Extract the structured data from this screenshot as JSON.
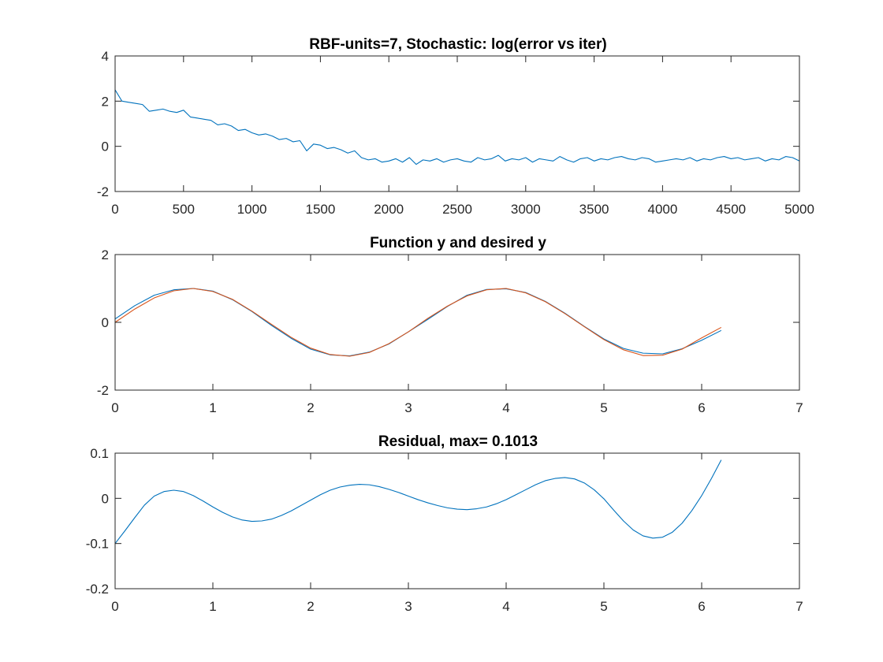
{
  "chart_data": [
    {
      "type": "line",
      "title": "RBF-units=7, Stochastic: log(error vs iter)",
      "xlabel": "",
      "ylabel": "",
      "xlim": [
        0,
        5000
      ],
      "ylim": [
        -2,
        4
      ],
      "xticks": [
        0,
        500,
        1000,
        1500,
        2000,
        2500,
        3000,
        3500,
        4000,
        4500,
        5000
      ],
      "yticks": [
        -2,
        0,
        2,
        4
      ],
      "grid": false,
      "series": [
        {
          "color": "#0072BD",
          "x": [
            0,
            50,
            100,
            150,
            200,
            250,
            300,
            350,
            400,
            450,
            500,
            550,
            600,
            650,
            700,
            750,
            800,
            850,
            900,
            950,
            1000,
            1050,
            1100,
            1150,
            1200,
            1250,
            1300,
            1350,
            1400,
            1450,
            1500,
            1550,
            1600,
            1650,
            1700,
            1750,
            1800,
            1850,
            1900,
            1950,
            2000,
            2050,
            2100,
            2150,
            2200,
            2250,
            2300,
            2350,
            2400,
            2450,
            2500,
            2550,
            2600,
            2650,
            2700,
            2750,
            2800,
            2850,
            2900,
            2950,
            3000,
            3050,
            3100,
            3150,
            3200,
            3250,
            3300,
            3350,
            3400,
            3450,
            3500,
            3550,
            3600,
            3650,
            3700,
            3750,
            3800,
            3850,
            3900,
            3950,
            4000,
            4050,
            4100,
            4150,
            4200,
            4250,
            4300,
            4350,
            4400,
            4450,
            4500,
            4550,
            4600,
            4650,
            4700,
            4750,
            4800,
            4850,
            4900,
            4950,
            5000
          ],
          "y": [
            2.5,
            2.0,
            1.95,
            1.9,
            1.85,
            1.55,
            1.6,
            1.65,
            1.55,
            1.5,
            1.6,
            1.3,
            1.25,
            1.2,
            1.15,
            0.95,
            1.0,
            0.9,
            0.7,
            0.75,
            0.6,
            0.5,
            0.55,
            0.45,
            0.3,
            0.35,
            0.2,
            0.25,
            -0.2,
            0.1,
            0.05,
            -0.1,
            -0.05,
            -0.15,
            -0.3,
            -0.2,
            -0.5,
            -0.6,
            -0.55,
            -0.7,
            -0.65,
            -0.55,
            -0.7,
            -0.5,
            -0.8,
            -0.6,
            -0.65,
            -0.55,
            -0.7,
            -0.6,
            -0.55,
            -0.65,
            -0.7,
            -0.5,
            -0.6,
            -0.55,
            -0.4,
            -0.65,
            -0.55,
            -0.6,
            -0.5,
            -0.7,
            -0.55,
            -0.6,
            -0.65,
            -0.45,
            -0.6,
            -0.7,
            -0.55,
            -0.5,
            -0.65,
            -0.55,
            -0.6,
            -0.5,
            -0.45,
            -0.55,
            -0.6,
            -0.5,
            -0.55,
            -0.7,
            -0.65,
            -0.6,
            -0.55,
            -0.6,
            -0.5,
            -0.65,
            -0.55,
            -0.6,
            -0.5,
            -0.45,
            -0.55,
            -0.5,
            -0.6,
            -0.55,
            -0.5,
            -0.65,
            -0.55,
            -0.6,
            -0.45,
            -0.5,
            -0.65
          ]
        }
      ]
    },
    {
      "type": "line",
      "title": "Function y and desired y",
      "xlabel": "",
      "ylabel": "",
      "xlim": [
        0,
        7
      ],
      "ylim": [
        -2,
        2
      ],
      "xticks": [
        0,
        1,
        2,
        3,
        4,
        5,
        6,
        7
      ],
      "yticks": [
        -2,
        0,
        2
      ],
      "grid": false,
      "series": [
        {
          "color": "#0072BD",
          "x": [
            0,
            0.2,
            0.4,
            0.6,
            0.8,
            1.0,
            1.2,
            1.4,
            1.6,
            1.8,
            2.0,
            2.2,
            2.4,
            2.6,
            2.8,
            3.0,
            3.2,
            3.4,
            3.6,
            3.8,
            4.0,
            4.2,
            4.4,
            4.6,
            4.8,
            5.0,
            5.2,
            5.4,
            5.6,
            5.8,
            6.0,
            6.2
          ],
          "y": [
            0.1,
            0.49,
            0.8,
            0.96,
            1.0,
            0.92,
            0.67,
            0.32,
            -0.09,
            -0.47,
            -0.79,
            -0.96,
            -0.99,
            -0.88,
            -0.64,
            -0.28,
            0.09,
            0.47,
            0.8,
            0.97,
            0.99,
            0.88,
            0.62,
            0.27,
            -0.12,
            -0.49,
            -0.77,
            -0.91,
            -0.93,
            -0.78,
            -0.53,
            -0.24
          ]
        },
        {
          "color": "#D95319",
          "x": [
            0,
            0.2,
            0.4,
            0.6,
            0.8,
            1.0,
            1.2,
            1.4,
            1.6,
            1.8,
            2.0,
            2.2,
            2.4,
            2.6,
            2.8,
            3.0,
            3.2,
            3.4,
            3.6,
            3.8,
            4.0,
            4.2,
            4.4,
            4.6,
            4.8,
            5.0,
            5.2,
            5.4,
            5.6,
            5.8,
            6.0,
            6.2
          ],
          "y": [
            0.0,
            0.39,
            0.72,
            0.93,
            1.0,
            0.91,
            0.68,
            0.33,
            -0.06,
            -0.44,
            -0.76,
            -0.95,
            -1.0,
            -0.89,
            -0.63,
            -0.28,
            0.12,
            0.48,
            0.78,
            0.96,
            1.0,
            0.87,
            0.61,
            0.26,
            -0.13,
            -0.51,
            -0.81,
            -0.98,
            -0.97,
            -0.79,
            -0.46,
            -0.15
          ]
        }
      ]
    },
    {
      "type": "line",
      "title": "Residual, max= 0.1013",
      "xlabel": "",
      "ylabel": "",
      "xlim": [
        0,
        7
      ],
      "ylim": [
        -0.2,
        0.1
      ],
      "xticks": [
        0,
        1,
        2,
        3,
        4,
        5,
        6,
        7
      ],
      "yticks": [
        -0.2,
        -0.1,
        0,
        0.1
      ],
      "grid": false,
      "series": [
        {
          "color": "#0072BD",
          "x": [
            0,
            0.1,
            0.2,
            0.3,
            0.4,
            0.5,
            0.6,
            0.7,
            0.8,
            0.9,
            1.0,
            1.1,
            1.2,
            1.3,
            1.4,
            1.5,
            1.6,
            1.7,
            1.8,
            1.9,
            2.0,
            2.1,
            2.2,
            2.3,
            2.4,
            2.5,
            2.6,
            2.7,
            2.8,
            2.9,
            3.0,
            3.1,
            3.2,
            3.3,
            3.4,
            3.5,
            3.6,
            3.7,
            3.8,
            3.9,
            4.0,
            4.1,
            4.2,
            4.3,
            4.4,
            4.5,
            4.6,
            4.7,
            4.8,
            4.9,
            5.0,
            5.1,
            5.2,
            5.3,
            5.4,
            5.5,
            5.6,
            5.7,
            5.8,
            5.9,
            6.0,
            6.1,
            6.2
          ],
          "y": [
            -0.1,
            -0.072,
            -0.043,
            -0.015,
            0.005,
            0.015,
            0.018,
            0.015,
            0.006,
            -0.006,
            -0.019,
            -0.031,
            -0.041,
            -0.048,
            -0.051,
            -0.05,
            -0.046,
            -0.038,
            -0.028,
            -0.016,
            -0.004,
            0.008,
            0.018,
            0.025,
            0.029,
            0.031,
            0.03,
            0.026,
            0.02,
            0.013,
            0.005,
            -0.003,
            -0.01,
            -0.016,
            -0.021,
            -0.024,
            -0.025,
            -0.023,
            -0.019,
            -0.012,
            -0.003,
            0.008,
            0.019,
            0.03,
            0.039,
            0.044,
            0.046,
            0.043,
            0.034,
            0.019,
            -0.001,
            -0.026,
            -0.05,
            -0.07,
            -0.083,
            -0.088,
            -0.086,
            -0.075,
            -0.055,
            -0.027,
            0.006,
            0.044,
            0.085
          ]
        }
      ]
    }
  ]
}
